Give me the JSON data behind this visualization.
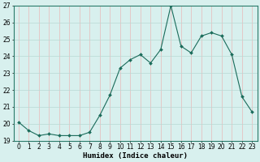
{
  "x": [
    0,
    1,
    2,
    3,
    4,
    5,
    6,
    7,
    8,
    9,
    10,
    11,
    12,
    13,
    14,
    15,
    16,
    17,
    18,
    19,
    20,
    21,
    22,
    23
  ],
  "y": [
    20.1,
    19.6,
    19.3,
    19.4,
    19.3,
    19.3,
    19.3,
    19.5,
    20.5,
    21.7,
    23.3,
    23.8,
    24.1,
    23.6,
    24.4,
    27.0,
    24.6,
    24.2,
    25.2,
    25.4,
    25.2,
    24.1,
    21.6,
    20.7
  ],
  "line_color": "#1a6b5a",
  "marker": "D",
  "marker_size": 2.0,
  "bg_color": "#d8f0ee",
  "grid_color": "#b8d8d4",
  "red_grid_color": "#e8b8b8",
  "xlabel": "Humidex (Indice chaleur)",
  "xlim": [
    -0.5,
    23.5
  ],
  "ylim": [
    19,
    27
  ],
  "yticks": [
    19,
    20,
    21,
    22,
    23,
    24,
    25,
    26,
    27
  ],
  "xticks": [
    0,
    1,
    2,
    3,
    4,
    5,
    6,
    7,
    8,
    9,
    10,
    11,
    12,
    13,
    14,
    15,
    16,
    17,
    18,
    19,
    20,
    21,
    22,
    23
  ],
  "xlabel_fontsize": 6.5,
  "tick_fontsize": 5.5
}
